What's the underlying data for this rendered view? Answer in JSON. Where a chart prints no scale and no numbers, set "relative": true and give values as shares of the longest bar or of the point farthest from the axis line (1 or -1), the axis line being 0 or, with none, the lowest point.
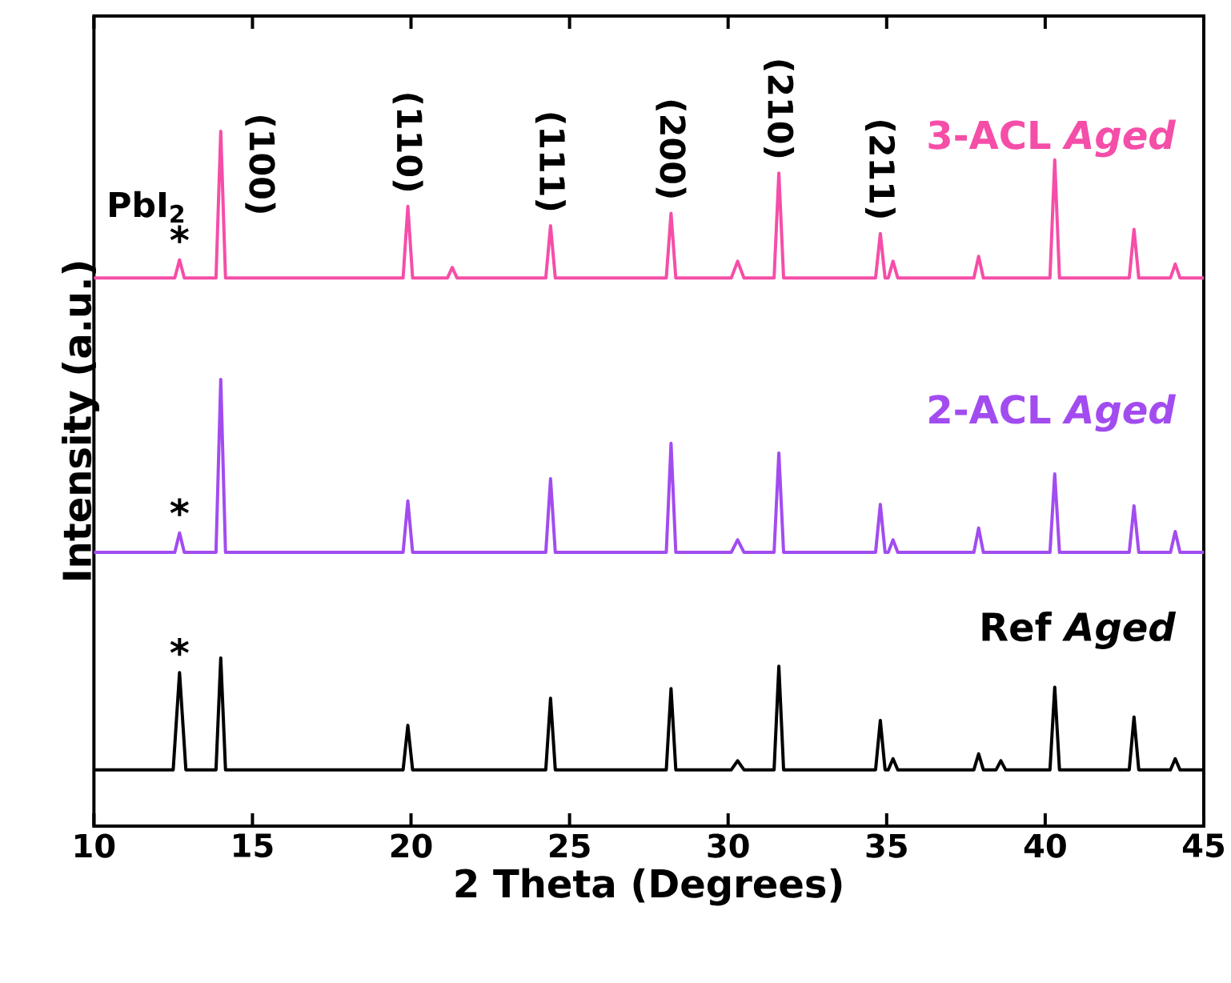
{
  "chart_data": {
    "type": "line",
    "relative": true,
    "xlabel": "2 Theta (Degrees)",
    "ylabel": "Intensity (a.u.)",
    "xlim": [
      10,
      45
    ],
    "xticks": [
      10,
      15,
      20,
      25,
      30,
      35,
      40,
      45
    ],
    "series": [
      {
        "name": "3-ACL *Aged*",
        "color": "#f54ea8",
        "x": [
          10,
          12.55,
          12.7,
          12.85,
          13.85,
          14.0,
          14.15,
          19.75,
          19.9,
          20.05,
          21.15,
          21.3,
          21.45,
          24.25,
          24.4,
          24.55,
          28.05,
          28.2,
          28.35,
          30.1,
          30.3,
          30.5,
          31.45,
          31.6,
          31.75,
          34.65,
          34.8,
          34.95,
          35.05,
          35.2,
          35.35,
          37.75,
          37.9,
          38.05,
          40.15,
          40.3,
          40.45,
          42.65,
          42.8,
          42.95,
          43.95,
          44.1,
          44.25,
          45
        ],
        "values": [
          0.789,
          0.789,
          0.815,
          0.789,
          0.789,
          1.0,
          0.789,
          0.789,
          0.892,
          0.789,
          0.789,
          0.804,
          0.789,
          0.789,
          0.864,
          0.789,
          0.789,
          0.882,
          0.789,
          0.789,
          0.813,
          0.789,
          0.789,
          0.94,
          0.789,
          0.789,
          0.853,
          0.789,
          0.789,
          0.813,
          0.789,
          0.789,
          0.82,
          0.789,
          0.789,
          0.959,
          0.789,
          0.789,
          0.859,
          0.789,
          0.789,
          0.809,
          0.789,
          0.789
        ]
      },
      {
        "name": "2-ACL *Aged*",
        "color": "#a24cf0",
        "x": [
          10,
          12.55,
          12.7,
          12.85,
          13.85,
          14.0,
          14.15,
          19.75,
          19.9,
          20.05,
          24.25,
          24.4,
          24.55,
          28.05,
          28.2,
          28.35,
          30.1,
          30.3,
          30.5,
          31.45,
          31.6,
          31.75,
          34.65,
          34.8,
          34.95,
          35.05,
          35.2,
          35.35,
          37.75,
          37.9,
          38.05,
          40.15,
          40.3,
          40.45,
          42.65,
          42.8,
          42.95,
          43.95,
          44.1,
          44.25,
          45
        ],
        "values": [
          0.394,
          0.394,
          0.422,
          0.394,
          0.394,
          0.643,
          0.394,
          0.394,
          0.468,
          0.394,
          0.394,
          0.5,
          0.394,
          0.394,
          0.551,
          0.394,
          0.394,
          0.412,
          0.394,
          0.394,
          0.537,
          0.394,
          0.394,
          0.463,
          0.394,
          0.394,
          0.412,
          0.394,
          0.394,
          0.429,
          0.394,
          0.394,
          0.507,
          0.394,
          0.394,
          0.461,
          0.394,
          0.394,
          0.424,
          0.394,
          0.394
        ]
      },
      {
        "name": "Ref *Aged*",
        "color": "#000000",
        "x": [
          10,
          12.5,
          12.7,
          12.9,
          13.85,
          14.0,
          14.15,
          19.75,
          19.9,
          20.05,
          24.25,
          24.4,
          24.55,
          28.05,
          28.2,
          28.35,
          30.1,
          30.3,
          30.5,
          31.45,
          31.6,
          31.75,
          34.65,
          34.8,
          34.95,
          35.05,
          35.2,
          35.35,
          37.75,
          37.9,
          38.05,
          38.45,
          38.6,
          38.75,
          40.15,
          40.3,
          40.45,
          42.65,
          42.8,
          42.95,
          43.95,
          44.1,
          44.25,
          45
        ],
        "values": [
          0.081,
          0.081,
          0.221,
          0.081,
          0.081,
          0.242,
          0.081,
          0.081,
          0.145,
          0.081,
          0.081,
          0.184,
          0.081,
          0.081,
          0.198,
          0.081,
          0.081,
          0.094,
          0.081,
          0.081,
          0.23,
          0.081,
          0.081,
          0.152,
          0.081,
          0.081,
          0.097,
          0.081,
          0.081,
          0.104,
          0.081,
          0.081,
          0.094,
          0.081,
          0.081,
          0.2,
          0.081,
          0.081,
          0.157,
          0.081,
          0.081,
          0.097,
          0.081,
          0.081
        ]
      }
    ],
    "annotations": [
      "PbI$_{2}$",
      "*",
      "*",
      "*",
      "(100)",
      "(110)",
      "(111)",
      "(200)",
      "(210)",
      "(211)"
    ]
  }
}
